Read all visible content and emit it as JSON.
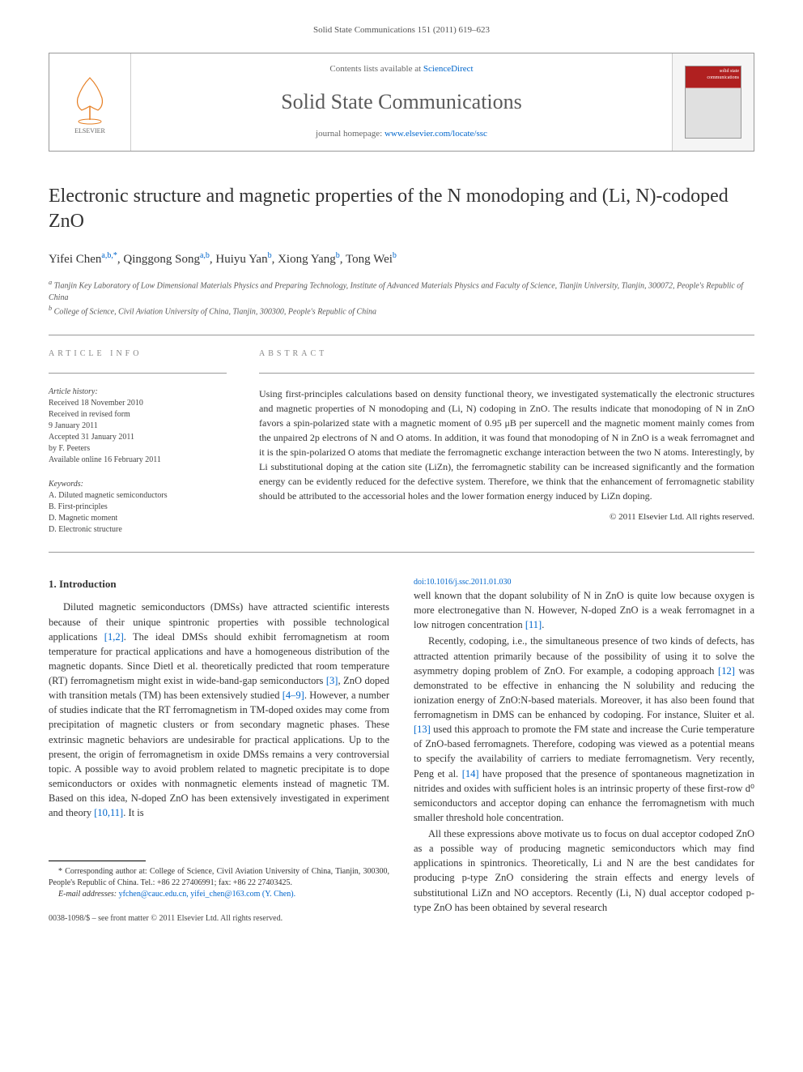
{
  "header": {
    "citation": "Solid State Communications 151 (2011) 619–623",
    "contents_prefix": "Contents lists available at ",
    "contents_link": "ScienceDirect",
    "journal_name": "Solid State Communications",
    "homepage_prefix": "journal homepage: ",
    "homepage_url": "www.elsevier.com/locate/ssc",
    "publisher": "ELSEVIER",
    "cover_text": "solid state communications"
  },
  "article": {
    "title": "Electronic structure and magnetic properties of the N monodoping and (Li, N)-codoped ZnO",
    "authors_html": "Yifei Chen",
    "author_list": [
      {
        "name": "Yifei Chen",
        "sup": "a,b,*"
      },
      {
        "name": "Qinggong Song",
        "sup": "a,b"
      },
      {
        "name": "Huiyu Yan",
        "sup": "b"
      },
      {
        "name": "Xiong Yang",
        "sup": "b"
      },
      {
        "name": "Tong Wei",
        "sup": "b"
      }
    ],
    "affiliations": [
      {
        "key": "a",
        "text": "Tianjin Key Laboratory of Low Dimensional Materials Physics and Preparing Technology, Institute of Advanced Materials Physics and Faculty of Science, Tianjin University, Tianjin, 300072, People's Republic of China"
      },
      {
        "key": "b",
        "text": "College of Science, Civil Aviation University of China, Tianjin, 300300, People's Republic of China"
      }
    ]
  },
  "info": {
    "heading": "ARTICLE INFO",
    "history_label": "Article history:",
    "history": [
      "Received 18 November 2010",
      "Received in revised form",
      "9 January 2011",
      "Accepted 31 January 2011",
      "by F. Peeters",
      "Available online 16 February 2011"
    ],
    "keywords_label": "Keywords:",
    "keywords": [
      "A. Diluted magnetic semiconductors",
      "B. First-principles",
      "D. Magnetic moment",
      "D. Electronic structure"
    ]
  },
  "abstract": {
    "heading": "ABSTRACT",
    "text": "Using first-principles calculations based on density functional theory, we investigated systematically the electronic structures and magnetic properties of N monodoping and (Li, N) codoping in ZnO. The results indicate that monodoping of N in ZnO favors a spin-polarized state with a magnetic moment of 0.95 μB per supercell and the magnetic moment mainly comes from the unpaired 2p electrons of N and O atoms. In addition, it was found that monodoping of N in ZnO is a weak ferromagnet and it is the spin-polarized O atoms that mediate the ferromagnetic exchange interaction between the two N atoms. Interestingly, by Li substitutional doping at the cation site (LiZn), the ferromagnetic stability can be increased significantly and the formation energy can be evidently reduced for the defective system. Therefore, we think that the enhancement of ferromagnetic stability should be attributed to the accessorial holes and the lower formation energy induced by LiZn doping.",
    "copyright": "© 2011 Elsevier Ltd. All rights reserved."
  },
  "intro": {
    "heading": "1. Introduction",
    "p1": "Diluted magnetic semiconductors (DMSs) have attracted scientific interests because of their unique spintronic properties with possible technological applications [1,2]. The ideal DMSs should exhibit ferromagnetism at room temperature for practical applications and have a homogeneous distribution of the magnetic dopants. Since Dietl et al. theoretically predicted that room temperature (RT) ferromagnetism might exist in wide-band-gap semiconductors [3], ZnO doped with transition metals (TM) has been extensively studied [4–9]. However, a number of studies indicate that the RT ferromagnetism in TM-doped oxides may come from precipitation of magnetic clusters or from secondary magnetic phases. These extrinsic magnetic behaviors are undesirable for practical applications. Up to the present, the origin of ferromagnetism in oxide DMSs remains a very controversial topic. A possible way to avoid problem related to magnetic precipitate is to dope semiconductors or oxides with nonmagnetic elements instead of magnetic TM. Based on this idea, N-doped ZnO has been extensively investigated in experiment and theory [10,11]. It is",
    "p2": "well known that the dopant solubility of N in ZnO is quite low because oxygen is more electronegative than N. However, N-doped ZnO is a weak ferromagnet in a low nitrogen concentration [11].",
    "p3": "Recently, codoping, i.e., the simultaneous presence of two kinds of defects, has attracted attention primarily because of the possibility of using it to solve the asymmetry doping problem of ZnO. For example, a codoping approach [12] was demonstrated to be effective in enhancing the N solubility and reducing the ionization energy of ZnO:N-based materials. Moreover, it has also been found that ferromagnetism in DMS can be enhanced by codoping. For instance, Sluiter et al. [13] used this approach to promote the FM state and increase the Curie temperature of ZnO-based ferromagnets. Therefore, codoping was viewed as a potential means to specify the availability of carriers to mediate ferromagnetism. Very recently, Peng et al. [14] have proposed that the presence of spontaneous magnetization in nitrides and oxides with sufficient holes is an intrinsic property of these first-row d⁰ semiconductors and acceptor doping can enhance the ferromagnetism with much smaller threshold hole concentration.",
    "p4": "All these expressions above motivate us to focus on dual acceptor codoped ZnO as a possible way of producing magnetic semiconductors which may find applications in spintronics. Theoretically, Li and N are the best candidates for producing p-type ZnO considering the strain effects and energy levels of substitutional LiZn and NO acceptors. Recently (Li, N) dual acceptor codoped p-type ZnO has been obtained by several research"
  },
  "footnotes": {
    "corr": "* Corresponding author at: College of Science, Civil Aviation University of China, Tianjin, 300300, People's Republic of China. Tel.: +86 22 27406991; fax: +86 22 27403425.",
    "email_label": "E-mail addresses:",
    "emails": "yfchen@cauc.edu.cn, yifei_chen@163.com (Y. Chen)."
  },
  "footer": {
    "issn": "0038-1098/$ – see front matter © 2011 Elsevier Ltd. All rights reserved.",
    "doi": "doi:10.1016/j.ssc.2011.01.030"
  },
  "colors": {
    "link": "#0066cc",
    "text": "#333333",
    "muted": "#666666",
    "border": "#999999",
    "cover_top": "#b02020"
  }
}
